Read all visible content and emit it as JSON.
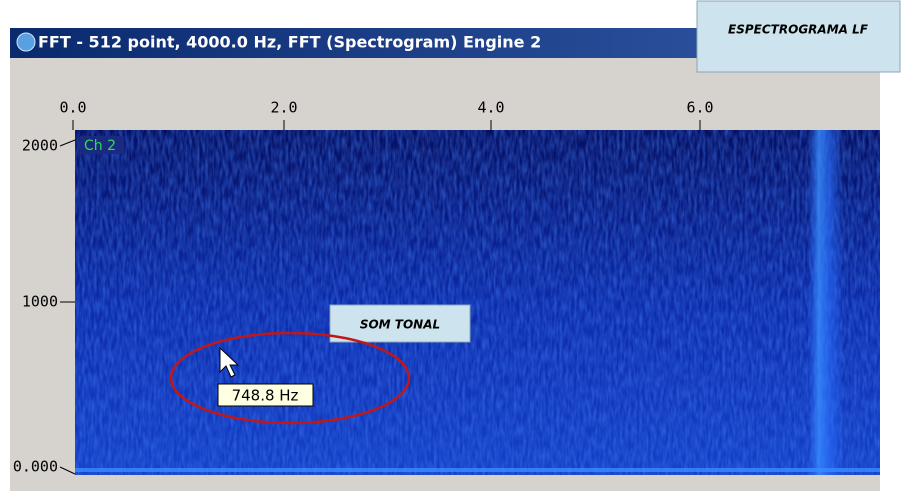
{
  "window": {
    "title": "FFT - 512 point, 4000.0 Hz, FFT (Spectrogram) Engine 2"
  },
  "callouts": {
    "top": "ESPECTROGRAMA LF",
    "middle": "SOM TONAL"
  },
  "x_axis": {
    "ticks": [
      "0.0",
      "2.0",
      "4.0",
      "6.0"
    ]
  },
  "y_axis": {
    "ticks": [
      "2000",
      "1000",
      "0.000"
    ]
  },
  "channel_label": "Ch 2",
  "tooltip": "748.8 Hz"
}
